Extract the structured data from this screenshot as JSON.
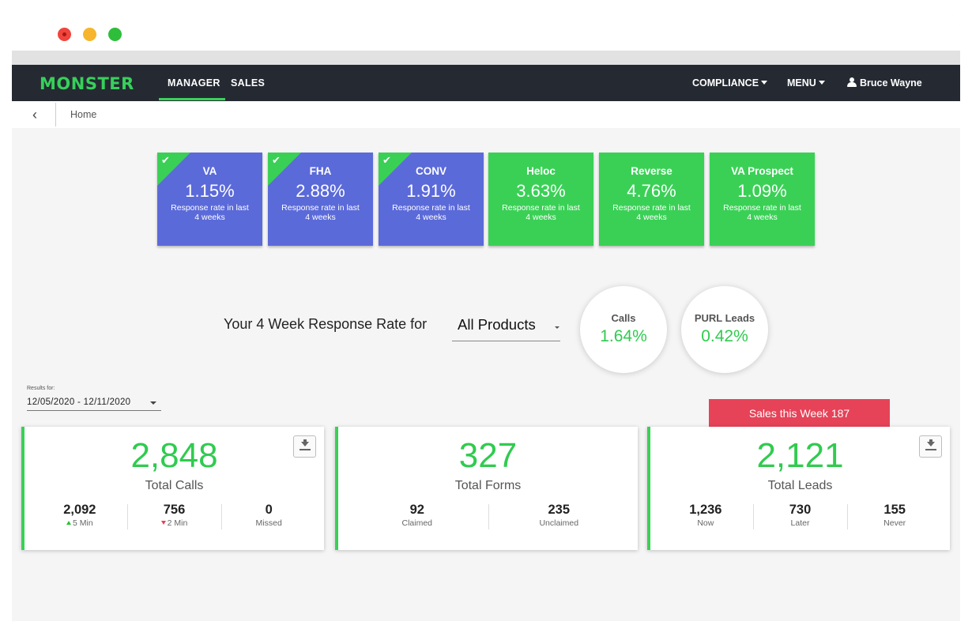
{
  "window": {
    "traffic_lights": [
      "close",
      "minimize",
      "maximize"
    ]
  },
  "nav": {
    "logo": "MONSTER",
    "tabs": [
      {
        "label": "MANAGER",
        "active": true
      },
      {
        "label": "SALES",
        "active": false
      }
    ],
    "compliance": "COMPLIANCE",
    "menu": "MENU",
    "user": "Bruce Wayne"
  },
  "breadcrumb": {
    "home": "Home"
  },
  "tiles": [
    {
      "name": "VA",
      "rate": "1.15%",
      "sub": "Response rate in last 4 weeks",
      "color": "#5b6ad9",
      "checked": true
    },
    {
      "name": "FHA",
      "rate": "2.88%",
      "sub": "Response rate in last 4 weeks",
      "color": "#5b6ad9",
      "checked": true
    },
    {
      "name": "CONV",
      "rate": "1.91%",
      "sub": "Response rate in last 4 weeks",
      "color": "#5b6ad9",
      "checked": true
    },
    {
      "name": "Heloc",
      "rate": "3.63%",
      "sub": "Response rate in last 4 weeks",
      "color": "#3ad056",
      "checked": false
    },
    {
      "name": "Reverse",
      "rate": "4.76%",
      "sub": "Response rate in last 4 weeks",
      "color": "#3ad056",
      "checked": false
    },
    {
      "name": "VA Prospect",
      "rate": "1.09%",
      "sub": "Response rate in last 4 weeks",
      "color": "#3ad056",
      "checked": false
    }
  ],
  "response": {
    "title": "Your 4 Week Response Rate for",
    "product": "All Products",
    "calls_label": "Calls",
    "calls_value": "1.64%",
    "purl_label": "PURL Leads",
    "purl_value": "0.42%"
  },
  "results": {
    "label": "Results for:",
    "range": "12/05/2020 - 12/11/2020"
  },
  "sales_banner": "Sales this Week 187",
  "cards": {
    "calls": {
      "total": "2,848",
      "caption": "Total Calls",
      "stats": [
        {
          "num": "2,092",
          "lbl": "5 Min",
          "trend": "up"
        },
        {
          "num": "756",
          "lbl": "2 Min",
          "trend": "down"
        },
        {
          "num": "0",
          "lbl": "Missed"
        }
      ]
    },
    "forms": {
      "total": "327",
      "caption": "Total Forms",
      "stats": [
        {
          "num": "92",
          "lbl": "Claimed"
        },
        {
          "num": "235",
          "lbl": "Unclaimed"
        }
      ]
    },
    "leads": {
      "total": "2,121",
      "caption": "Total Leads",
      "stats": [
        {
          "num": "1,236",
          "lbl": "Now"
        },
        {
          "num": "730",
          "lbl": "Later"
        },
        {
          "num": "155",
          "lbl": "Never"
        }
      ]
    }
  },
  "colors": {
    "accent_green": "#3ad056",
    "tile_blue": "#5b6ad9",
    "navbar": "#252a32",
    "sales_red": "#e64358"
  }
}
